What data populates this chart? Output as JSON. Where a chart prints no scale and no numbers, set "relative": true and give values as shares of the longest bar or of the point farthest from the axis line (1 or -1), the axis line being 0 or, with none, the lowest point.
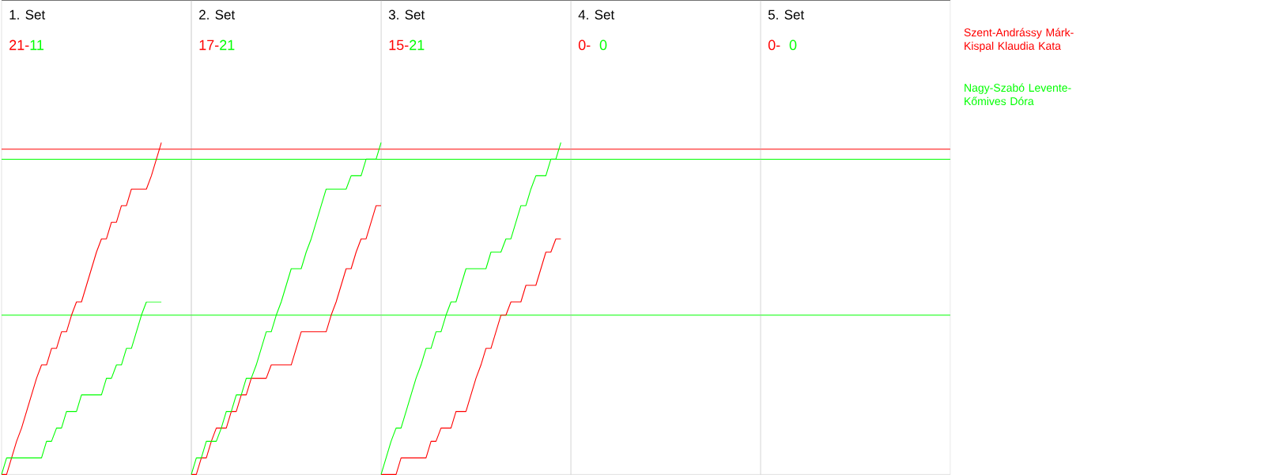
{
  "chart_data": [
    {
      "type": "line",
      "relative": true,
      "title": "1. Set",
      "annotations": [
        "21-",
        "11"
      ],
      "legend": "right",
      "categories": [
        null,
        null,
        null,
        null,
        null,
        null,
        null,
        null,
        null,
        null,
        null,
        null,
        null,
        null,
        null,
        null,
        null,
        null,
        null,
        null,
        null,
        null,
        null,
        null,
        null,
        null,
        null,
        null,
        null,
        null,
        null,
        null,
        null
      ],
      "ref_lines": [
        {
          "axis": "y",
          "value": 0.98,
          "color": "#ff0000"
        },
        {
          "axis": "y",
          "value": 0.95,
          "color": "#00ff00"
        },
        {
          "axis": "y",
          "value": 0.48,
          "color": "#00ff00"
        }
      ],
      "series": [
        {
          "name": "Szent-Andrássy Márk-Kispal Klaudia Kata",
          "color": "#ff0000",
          "values": [
            0,
            0,
            0.05,
            0.1,
            0.14,
            0.19,
            0.24,
            0.29,
            0.33,
            0.33,
            0.38,
            0.38,
            0.43,
            0.43,
            0.48,
            0.52,
            0.52,
            0.57,
            0.62,
            0.67,
            0.71,
            0.71,
            0.76,
            0.76,
            0.81,
            0.81,
            0.86,
            0.86,
            0.86,
            0.86,
            0.9,
            0.95,
            1
          ]
        },
        {
          "name": "Nagy-Szabó Levente-Kőmives Dóra",
          "color": "#00ff00",
          "values": [
            0,
            0.05,
            0.05,
            0.05,
            0.05,
            0.05,
            0.05,
            0.05,
            0.05,
            0.1,
            0.1,
            0.14,
            0.14,
            0.19,
            0.19,
            0.19,
            0.24,
            0.24,
            0.24,
            0.24,
            0.24,
            0.29,
            0.29,
            0.33,
            0.33,
            0.38,
            0.38,
            0.43,
            0.48,
            0.52,
            0.52,
            0.52,
            0.52
          ]
        }
      ]
    },
    {
      "type": "line",
      "relative": true,
      "title": "2. Set",
      "annotations": [
        "17-",
        "21"
      ],
      "categories": [
        null,
        null,
        null,
        null,
        null,
        null,
        null,
        null,
        null,
        null,
        null,
        null,
        null,
        null,
        null,
        null,
        null,
        null,
        null,
        null,
        null,
        null,
        null,
        null,
        null,
        null,
        null,
        null,
        null,
        null,
        null,
        null,
        null,
        null,
        null,
        null,
        null,
        null,
        null
      ],
      "series": [
        {
          "color": "#ff0000",
          "values": [
            0,
            0,
            0.05,
            0.05,
            0.1,
            0.14,
            0.14,
            0.14,
            0.19,
            0.19,
            0.24,
            0.24,
            0.29,
            0.29,
            0.29,
            0.29,
            0.33,
            0.33,
            0.33,
            0.33,
            0.33,
            0.38,
            0.43,
            0.43,
            0.43,
            0.43,
            0.43,
            0.43,
            0.48,
            0.52,
            0.57,
            0.62,
            0.62,
            0.67,
            0.71,
            0.71,
            0.76,
            0.81,
            0.81
          ]
        },
        {
          "color": "#00ff00",
          "values": [
            0,
            0.05,
            0.05,
            0.1,
            0.1,
            0.1,
            0.14,
            0.19,
            0.19,
            0.24,
            0.24,
            0.29,
            0.29,
            0.33,
            0.38,
            0.43,
            0.43,
            0.48,
            0.52,
            0.57,
            0.62,
            0.62,
            0.62,
            0.67,
            0.71,
            0.76,
            0.81,
            0.86,
            0.86,
            0.86,
            0.86,
            0.86,
            0.9,
            0.9,
            0.9,
            0.95,
            0.95,
            0.95,
            1
          ]
        }
      ]
    },
    {
      "type": "line",
      "relative": true,
      "title": "3. Set",
      "annotations": [
        "15-",
        "21"
      ],
      "categories": [
        null,
        null,
        null,
        null,
        null,
        null,
        null,
        null,
        null,
        null,
        null,
        null,
        null,
        null,
        null,
        null,
        null,
        null,
        null,
        null,
        null,
        null,
        null,
        null,
        null,
        null,
        null,
        null,
        null,
        null,
        null,
        null,
        null,
        null,
        null,
        null,
        null
      ],
      "series": [
        {
          "color": "#ff0000",
          "values": [
            0,
            0,
            0,
            0,
            0.05,
            0.05,
            0.05,
            0.05,
            0.05,
            0.05,
            0.1,
            0.1,
            0.14,
            0.14,
            0.14,
            0.19,
            0.19,
            0.19,
            0.24,
            0.29,
            0.33,
            0.38,
            0.38,
            0.43,
            0.48,
            0.48,
            0.52,
            0.52,
            0.52,
            0.57,
            0.57,
            0.57,
            0.62,
            0.67,
            0.67,
            0.71,
            0.71
          ]
        },
        {
          "color": "#00ff00",
          "values": [
            0,
            0.05,
            0.1,
            0.14,
            0.14,
            0.19,
            0.24,
            0.29,
            0.33,
            0.38,
            0.38,
            0.43,
            0.43,
            0.48,
            0.52,
            0.52,
            0.57,
            0.62,
            0.62,
            0.62,
            0.62,
            0.62,
            0.67,
            0.67,
            0.67,
            0.71,
            0.71,
            0.76,
            0.81,
            0.81,
            0.86,
            0.9,
            0.9,
            0.9,
            0.95,
            0.95,
            1
          ]
        }
      ]
    },
    {
      "type": "other",
      "title": "4. Set",
      "annotations": [
        "0-",
        "0"
      ]
    },
    {
      "type": "other",
      "title": "5. Set",
      "annotations": [
        "0-",
        "0"
      ]
    }
  ]
}
